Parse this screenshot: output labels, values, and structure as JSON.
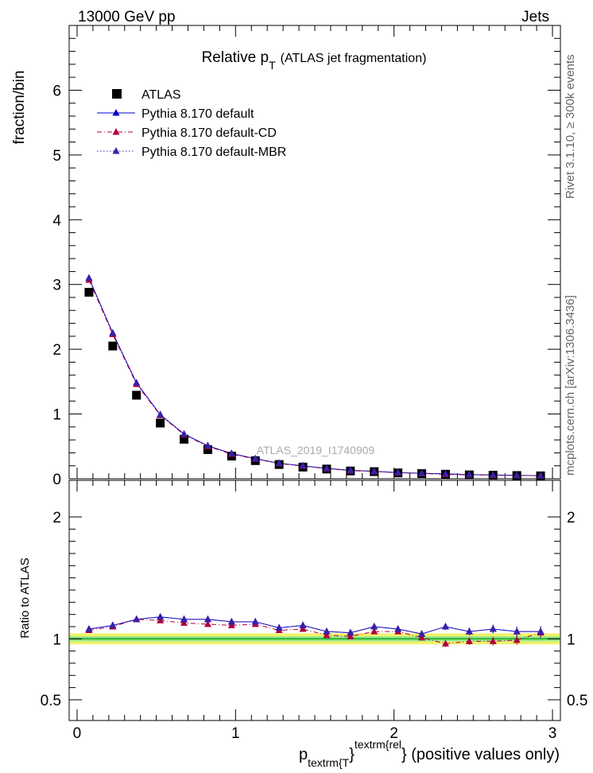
{
  "header": {
    "left": "13000 GeV pp",
    "right": "Jets"
  },
  "side": {
    "rivet": "Rivet 3.1.10, ≥ 300k events",
    "mcplots": "mcplots.cern.ch [arXiv:1306.3436]"
  },
  "colors": {
    "atlas": "#000000",
    "default": "#0000cc",
    "cd": "#b0003a",
    "mbr": "#3a1fa8",
    "band_outer": "#f0f26a",
    "band_inner": "#8fe58f",
    "unity_line": "#1aaa1a"
  },
  "chart_data": [
    {
      "type": "line",
      "panel": "main",
      "title_main": "Relative p",
      "title_sub": "T",
      "title_rest": "(ATLAS jet fragmentation)",
      "watermark": "ATLAS_2019_I1740909",
      "ylabel": "fraction/bin",
      "xlim": [
        -0.05,
        3.05
      ],
      "ylim": [
        0,
        7
      ],
      "yticks": [
        0,
        1,
        2,
        3,
        4,
        5,
        6
      ],
      "ytick_labels": [
        "0",
        "1",
        "2",
        "3",
        "4",
        "5",
        "6"
      ],
      "x": [
        0.075,
        0.225,
        0.375,
        0.525,
        0.675,
        0.825,
        0.975,
        1.125,
        1.275,
        1.425,
        1.575,
        1.725,
        1.875,
        2.025,
        2.175,
        2.325,
        2.475,
        2.625,
        2.775,
        2.925
      ],
      "legend": [
        "ATLAS",
        "Pythia 8.170 default",
        "Pythia 8.170 default-CD",
        "Pythia 8.170 default-MBR"
      ],
      "series": [
        {
          "name": "ATLAS",
          "style": "square",
          "values": [
            2.88,
            2.05,
            1.29,
            0.86,
            0.61,
            0.45,
            0.35,
            0.28,
            0.22,
            0.18,
            0.15,
            0.12,
            0.11,
            0.09,
            0.08,
            0.07,
            0.06,
            0.055,
            0.05,
            0.045
          ]
        },
        {
          "name": "Pythia 8.170 default",
          "style": "solid",
          "values": [
            3.1,
            2.25,
            1.48,
            0.99,
            0.69,
            0.51,
            0.39,
            0.31,
            0.24,
            0.2,
            0.16,
            0.13,
            0.115,
            0.095,
            0.085,
            0.075,
            0.065,
            0.058,
            0.052,
            0.047
          ]
        },
        {
          "name": "Pythia 8.170 default-CD",
          "style": "dashdot",
          "values": [
            3.07,
            2.23,
            1.46,
            0.98,
            0.68,
            0.5,
            0.38,
            0.305,
            0.235,
            0.195,
            0.155,
            0.125,
            0.112,
            0.092,
            0.082,
            0.068,
            0.06,
            0.054,
            0.05,
            0.047
          ]
        },
        {
          "name": "Pythia 8.170 default-MBR",
          "style": "dotted",
          "values": [
            3.1,
            2.25,
            1.48,
            0.99,
            0.69,
            0.51,
            0.39,
            0.31,
            0.24,
            0.2,
            0.16,
            0.13,
            0.115,
            0.095,
            0.085,
            0.075,
            0.065,
            0.058,
            0.052,
            0.047
          ]
        }
      ]
    },
    {
      "type": "line",
      "panel": "ratio",
      "ylabel": "Ratio to ATLAS",
      "xlabel_main": "p",
      "xlabel_sub": "textrm{T",
      "xlabel_sup": "textrm{rel",
      "xlabel_rest": "} (positive values only)",
      "xlabel_brace": "}",
      "xlim": [
        -0.05,
        3.05
      ],
      "xticks": [
        0,
        1,
        2,
        3
      ],
      "xtick_labels": [
        "0",
        "1",
        "2",
        "3"
      ],
      "ylim": [
        0.33,
        2.3
      ],
      "yticks": [
        0.5,
        1,
        2
      ],
      "ytick_labels": [
        "0.5",
        "1",
        "2"
      ],
      "band_outer": 0.045,
      "band_inner": 0.02,
      "x": [
        0.075,
        0.225,
        0.375,
        0.525,
        0.675,
        0.825,
        0.975,
        1.125,
        1.275,
        1.425,
        1.575,
        1.725,
        1.875,
        2.025,
        2.175,
        2.325,
        2.475,
        2.625,
        2.775,
        2.925
      ],
      "series": [
        {
          "name": "Pythia 8.170 default",
          "style": "solid",
          "values": [
            1.08,
            1.11,
            1.16,
            1.18,
            1.16,
            1.16,
            1.14,
            1.14,
            1.09,
            1.11,
            1.06,
            1.05,
            1.1,
            1.08,
            1.04,
            1.1,
            1.06,
            1.08,
            1.06,
            1.06
          ]
        },
        {
          "name": "Pythia 8.170 default-CD",
          "style": "dashdot",
          "values": [
            1.07,
            1.1,
            1.16,
            1.15,
            1.13,
            1.12,
            1.11,
            1.12,
            1.07,
            1.08,
            1.03,
            1.02,
            1.06,
            1.06,
            1.01,
            0.96,
            0.98,
            0.98,
            0.99,
            1.05
          ]
        },
        {
          "name": "Pythia 8.170 default-MBR",
          "style": "dotted",
          "values": [
            1.08,
            1.11,
            1.16,
            1.18,
            1.16,
            1.16,
            1.14,
            1.14,
            1.09,
            1.11,
            1.06,
            1.05,
            1.1,
            1.08,
            1.04,
            1.1,
            1.06,
            1.08,
            1.06,
            1.06
          ]
        }
      ]
    }
  ]
}
